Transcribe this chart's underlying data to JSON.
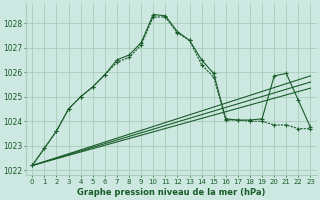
{
  "background_color": "#cce8e0",
  "grid_color": "#aaccbb",
  "line_color": "#1a5c2a",
  "xlabel": "Graphe pression niveau de la mer (hPa)",
  "xlim": [
    -0.5,
    23.5
  ],
  "ylim": [
    1021.8,
    1028.8
  ],
  "yticks": [
    1022,
    1023,
    1024,
    1025,
    1026,
    1027,
    1028
  ],
  "xticks": [
    0,
    1,
    2,
    3,
    4,
    5,
    6,
    7,
    8,
    9,
    10,
    11,
    12,
    13,
    14,
    15,
    16,
    17,
    18,
    19,
    20,
    21,
    22,
    23
  ],
  "curve1_x": [
    0,
    1,
    2,
    3,
    4,
    5,
    6,
    7,
    8,
    9,
    10,
    11,
    12,
    13,
    14,
    15,
    16,
    17,
    18,
    19,
    20,
    21,
    22,
    23
  ],
  "curve1_y": [
    1022.2,
    1022.9,
    1023.6,
    1024.5,
    1025.0,
    1025.4,
    1025.9,
    1026.4,
    1026.6,
    1027.1,
    1028.25,
    1028.25,
    1027.6,
    1027.3,
    1026.3,
    1025.8,
    1024.05,
    1024.05,
    1024.0,
    1024.0,
    1023.85,
    1023.85,
    1023.7,
    1023.7
  ],
  "curve2_x": [
    0,
    1,
    2,
    3,
    4,
    5,
    6,
    7,
    8,
    9,
    10,
    11,
    12,
    13,
    14,
    15,
    16,
    17,
    18,
    19,
    20,
    21,
    22,
    23
  ],
  "curve2_y": [
    1022.2,
    1022.9,
    1023.6,
    1024.5,
    1025.0,
    1025.4,
    1025.9,
    1026.5,
    1026.7,
    1027.2,
    1028.35,
    1028.3,
    1027.65,
    1027.3,
    1026.5,
    1025.95,
    1024.1,
    1024.05,
    1024.05,
    1024.1,
    1025.85,
    1025.95,
    1024.85,
    1023.75
  ],
  "trend1_x": [
    0,
    23
  ],
  "trend1_y": [
    1022.2,
    1025.85
  ],
  "trend2_x": [
    0,
    23
  ],
  "trend2_y": [
    1022.2,
    1025.6
  ],
  "trend3_x": [
    0,
    23
  ],
  "trend3_y": [
    1022.2,
    1025.35
  ]
}
